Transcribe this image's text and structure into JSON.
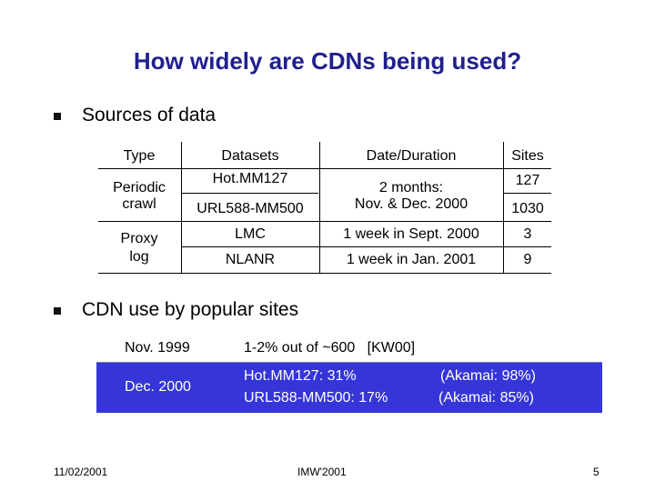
{
  "title": "How widely are CDNs being used?",
  "bullets": {
    "sources": "Sources of data",
    "cdn_use": "CDN use by popular sites"
  },
  "table": {
    "headers": [
      "Type",
      "Datasets",
      "Date/Duration",
      "Sites"
    ],
    "periodic": {
      "type_line1": "Periodic",
      "type_line2": "crawl",
      "dataset1": "Hot.MM127",
      "dataset2": "URL588-MM500",
      "duration_line1": "2 months:",
      "duration_line2": "Nov. & Dec. 2000",
      "sites1": "127",
      "sites2": "1030"
    },
    "proxy": {
      "type_line1": "Proxy",
      "type_line2": "log",
      "dataset1": "LMC",
      "dataset2": "NLANR",
      "duration1": "1 week in Sept. 2000",
      "duration2": "1 week in Jan. 2001",
      "sites1": "3",
      "sites2": "9"
    }
  },
  "cdn_box": {
    "row1_date": "Nov. 1999",
    "row1_text": "1-2% out of ~600   [KW00]",
    "row2_date": "Dec. 2000",
    "row2_line1_left": "Hot.MM127: 31%",
    "row2_line1_right": "(Akamai: 98%)",
    "row2_line2_left": "URL588-MM500: 17%",
    "row2_line2_right": "(Akamai: 85%)"
  },
  "footer": {
    "date": "11/02/2001",
    "venue": "IMW'2001",
    "page": "5"
  },
  "colors": {
    "title": "#1f1f8f",
    "box_highlight": "#3636d8"
  }
}
